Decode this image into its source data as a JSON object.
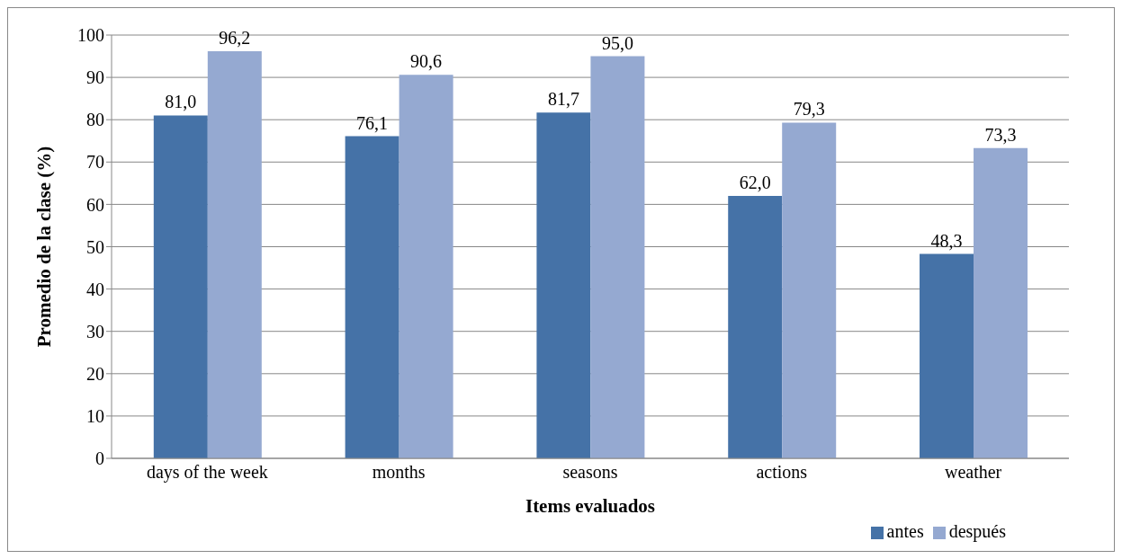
{
  "chart_data": {
    "type": "bar",
    "xlabel": "Items evaluados",
    "ylabel": "Promedio de la clase (%)",
    "categories": [
      "days of the week",
      "months",
      "seasons",
      "actions",
      "weather"
    ],
    "series": [
      {
        "name": "antes",
        "color": "#4572a7",
        "values": [
          81.0,
          76.1,
          81.7,
          62.0,
          48.3
        ],
        "value_labels": [
          "81,0",
          "76,1",
          "81,7",
          "62,0",
          "48,3"
        ]
      },
      {
        "name": "después",
        "color": "#95a9d1",
        "values": [
          96.2,
          90.6,
          95.0,
          79.3,
          73.3
        ],
        "value_labels": [
          "96,2",
          "90,6",
          "95,0",
          "79,3",
          "73,3"
        ]
      }
    ],
    "ylim": [
      0,
      100
    ],
    "yticks": [
      0,
      10,
      20,
      30,
      40,
      50,
      60,
      70,
      80,
      90,
      100
    ],
    "grid": "y",
    "legend": "bottom right"
  }
}
